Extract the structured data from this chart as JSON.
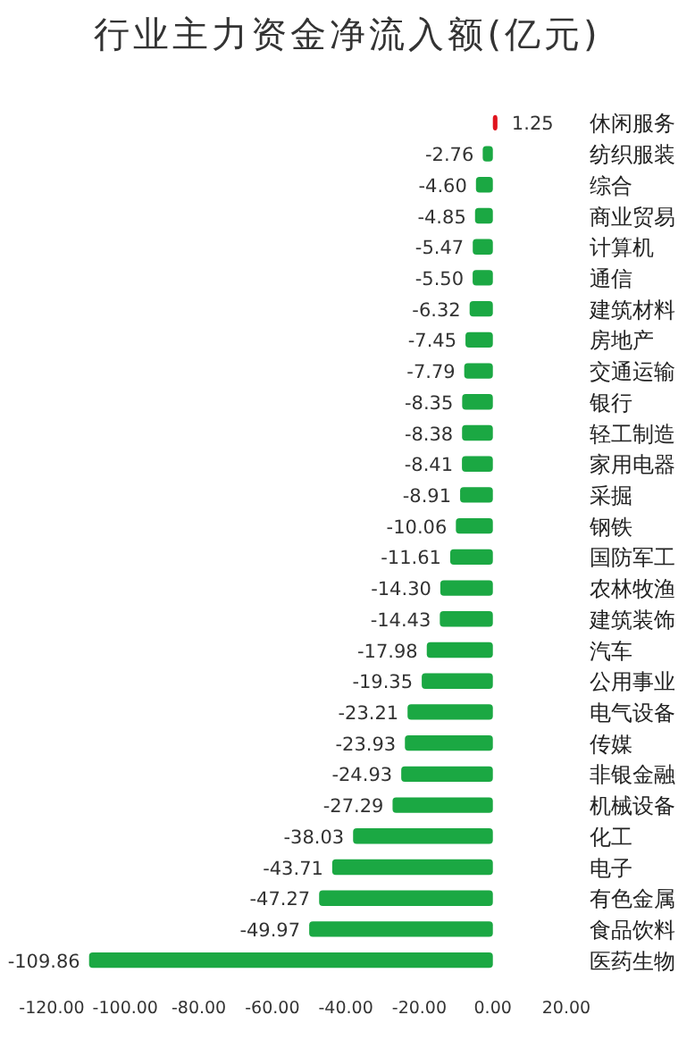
{
  "chart_data": {
    "type": "bar",
    "orientation": "horizontal",
    "title": "行业主力资金净流入额(亿元)",
    "categories": [
      "休闲服务",
      "纺织服装",
      "综合",
      "商业贸易",
      "计算机",
      "通信",
      "建筑材料",
      "房地产",
      "交通运输",
      "银行",
      "轻工制造",
      "家用电器",
      "采掘",
      "钢铁",
      "国防军工",
      "农林牧渔",
      "建筑装饰",
      "汽车",
      "公用事业",
      "电气设备",
      "传媒",
      "非银金融",
      "机械设备",
      "化工",
      "电子",
      "有色金属",
      "食品饮料",
      "医药生物"
    ],
    "values": [
      1.25,
      -2.76,
      -4.6,
      -4.85,
      -5.47,
      -5.5,
      -6.32,
      -7.45,
      -7.79,
      -8.35,
      -8.38,
      -8.41,
      -8.91,
      -10.06,
      -11.61,
      -14.3,
      -14.43,
      -17.98,
      -19.35,
      -23.21,
      -23.93,
      -24.93,
      -27.29,
      -38.03,
      -43.71,
      -47.27,
      -49.97,
      -109.86
    ],
    "colors": [
      "#e0141e",
      "#1ba843",
      "#1ba843",
      "#1ba843",
      "#1ba843",
      "#1ba843",
      "#1ba843",
      "#1ba843",
      "#1ba843",
      "#1ba843",
      "#1ba843",
      "#1ba843",
      "#1ba843",
      "#1ba843",
      "#1ba843",
      "#1ba843",
      "#1ba843",
      "#1ba843",
      "#1ba843",
      "#1ba843",
      "#1ba843",
      "#1ba843",
      "#1ba843",
      "#1ba843",
      "#1ba843",
      "#1ba843",
      "#1ba843",
      "#1ba843"
    ],
    "value_labels": [
      "1.25",
      "-2.76",
      "-4.60",
      "-4.85",
      "-5.47",
      "-5.50",
      "-6.32",
      "-7.45",
      "-7.79",
      "-8.35",
      "-8.38",
      "-8.41",
      "-8.91",
      "-10.06",
      "-11.61",
      "-14.30",
      "-14.43",
      "-17.98",
      "-19.35",
      "-23.21",
      "-23.93",
      "-24.93",
      "-27.29",
      "-38.03",
      "-43.71",
      "-47.27",
      "-49.97",
      "-109.86"
    ],
    "xlim": [
      -120,
      20
    ],
    "xticks": [
      {
        "value": -120,
        "label": "-120.00"
      },
      {
        "value": -100,
        "label": "-100.00"
      },
      {
        "value": -80,
        "label": "-80.00"
      },
      {
        "value": -60,
        "label": "-60.00"
      },
      {
        "value": -40,
        "label": "-40.00"
      },
      {
        "value": -20,
        "label": "-20.00"
      },
      {
        "value": 0,
        "label": "0.00"
      },
      {
        "value": 20,
        "label": "20.00"
      }
    ],
    "grid": false
  }
}
